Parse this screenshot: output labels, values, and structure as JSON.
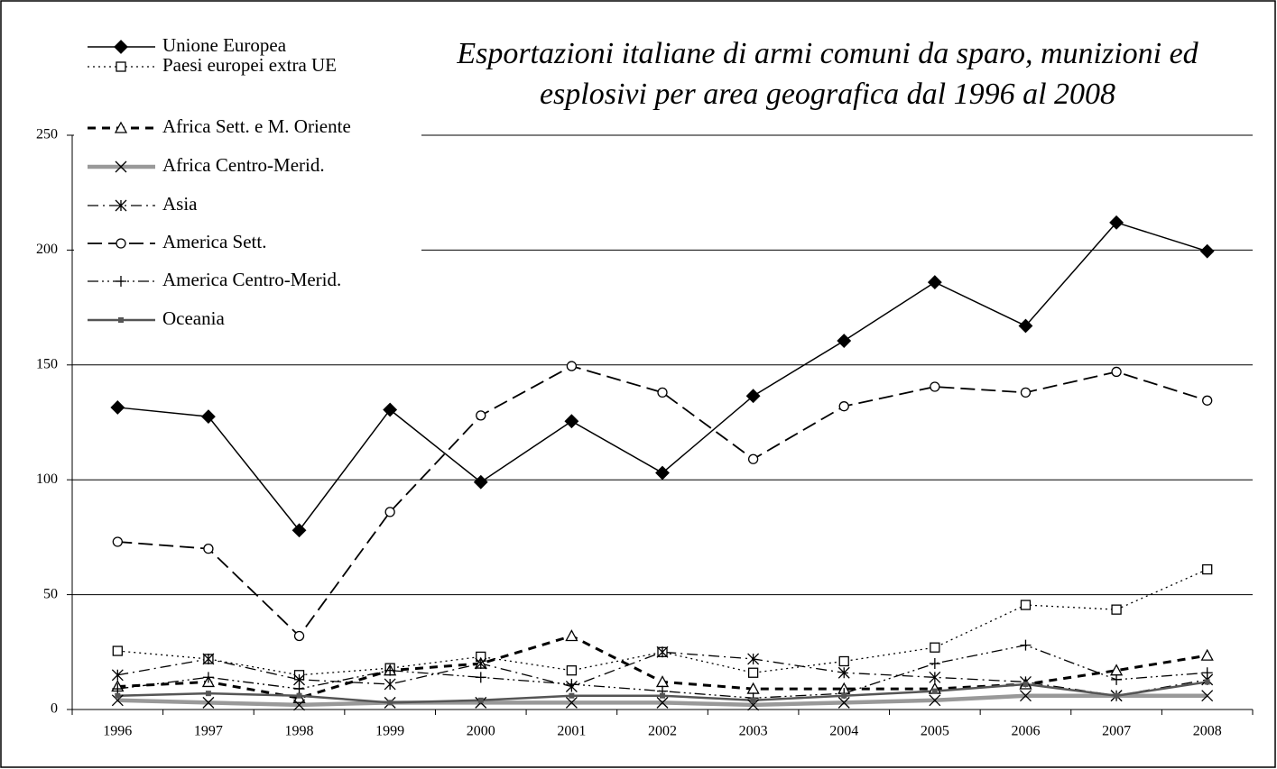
{
  "chart_data": {
    "type": "line",
    "title": [
      "Esportazioni italiane di armi comuni da sparo, munizioni ed",
      "esplosivi per area geografica dal 1996 al 2008"
    ],
    "categories": [
      "1996",
      "1997",
      "1998",
      "1999",
      "2000",
      "2001",
      "2002",
      "2003",
      "2004",
      "2005",
      "2006",
      "2007",
      "2008"
    ],
    "ylim": [
      0,
      250
    ],
    "yticks": [
      0,
      50,
      100,
      150,
      200,
      250
    ],
    "grid": true,
    "legend": "top-left",
    "series": [
      {
        "name": "Unione Europea",
        "color": "#000000",
        "dash": "solid",
        "marker": "diamond",
        "values": [
          131.5,
          127.5,
          78,
          130.5,
          99,
          125.5,
          103,
          136.5,
          160.5,
          186,
          167,
          212,
          199.5
        ]
      },
      {
        "name": "Paesi europei extra UE",
        "color": "#000000",
        "dash": "dot",
        "marker": "square",
        "values": [
          25.5,
          22,
          15,
          18,
          23,
          17,
          25,
          16,
          21,
          27,
          45.5,
          43.5,
          61
        ]
      },
      {
        "name": "Africa Sett. e M. Oriente",
        "color": "#000000",
        "dash": "dash-bold",
        "marker": "triangle",
        "values": [
          10,
          12,
          5,
          17,
          20,
          32,
          12,
          9,
          9,
          9,
          11,
          17,
          23.5
        ]
      },
      {
        "name": "Africa Centro-Merid.",
        "color": "#999999",
        "dash": "thick",
        "marker": "x",
        "values": [
          4,
          3,
          2,
          3,
          3,
          3,
          3,
          2,
          3,
          4,
          6,
          6,
          6
        ]
      },
      {
        "name": "Asia",
        "color": "#000000",
        "dash": "dash-dot",
        "marker": "asterisk",
        "values": [
          15,
          22,
          13,
          11,
          20,
          10,
          25,
          22,
          16,
          14,
          12,
          6,
          13
        ]
      },
      {
        "name": "America Sett.",
        "color": "#000000",
        "dash": "long-dash",
        "marker": "circle",
        "values": [
          73,
          70,
          32,
          86,
          128,
          149.5,
          138,
          109,
          132,
          140.5,
          138,
          147,
          134.5
        ]
      },
      {
        "name": "America Centro-Merid.",
        "color": "#000000",
        "dash": "dash-dot-dot",
        "marker": "plus",
        "values": [
          9,
          14,
          9,
          17,
          14,
          11,
          8,
          5,
          7,
          20,
          28,
          13,
          16
        ]
      },
      {
        "name": "Oceania",
        "color": "#555555",
        "dash": "medium",
        "marker": "block",
        "values": [
          6,
          7,
          6,
          3,
          4,
          6,
          6,
          4,
          6,
          8,
          11,
          6,
          12
        ]
      }
    ]
  }
}
